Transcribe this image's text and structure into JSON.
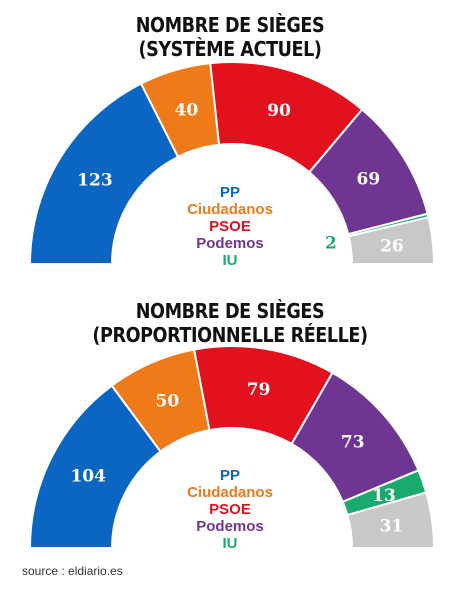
{
  "colors": {
    "PP": "#0a66c2",
    "Ciudadanos": "#ee7a1a",
    "PSOE": "#e3101e",
    "Podemos": "#6f3592",
    "IU": "#1aaa6e",
    "Autres": "#c8c8c8"
  },
  "chart_data": [
    {
      "type": "pie",
      "subtype": "parliament-half-donut",
      "title_line1": "NOMBRE DE SIÈGES",
      "title_line2": "(SYSTÈME ACTUEL)",
      "segments": [
        {
          "party": "PP",
          "value": 123
        },
        {
          "party": "Ciudadanos",
          "value": 40
        },
        {
          "party": "PSOE",
          "value": 90
        },
        {
          "party": "Podemos",
          "value": 69
        },
        {
          "party": "IU",
          "value": 2
        },
        {
          "party": "Autres",
          "value": 26
        }
      ]
    },
    {
      "type": "pie",
      "subtype": "parliament-half-donut",
      "title_line1": "NOMBRE DE SIÈGES",
      "title_line2": "(PROPORTIONNELLE RÉELLE)",
      "segments": [
        {
          "party": "PP",
          "value": 104
        },
        {
          "party": "Ciudadanos",
          "value": 50
        },
        {
          "party": "PSOE",
          "value": 79
        },
        {
          "party": "Podemos",
          "value": 73
        },
        {
          "party": "IU",
          "value": 13
        },
        {
          "party": "Autres",
          "value": 31
        }
      ]
    }
  ],
  "legend": [
    "PP",
    "Ciudadanos",
    "PSOE",
    "Podemos",
    "IU"
  ],
  "source": "source : eldiario.es"
}
